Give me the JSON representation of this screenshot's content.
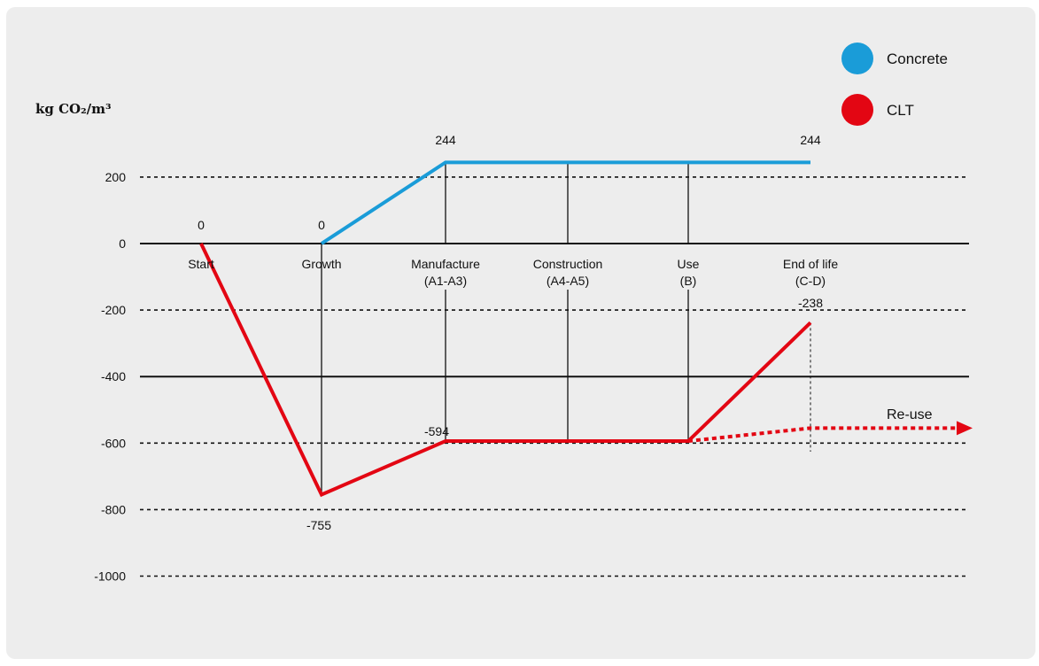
{
  "chart_data": {
    "type": "line",
    "title": "",
    "ylabel": "kg CO₂/m³",
    "xlabel": "",
    "ylim": [
      -1000,
      244
    ],
    "y_ticks": [
      "200",
      "0",
      "-200",
      "-400",
      "-600",
      "-800",
      "-1000"
    ],
    "y_tick_values": [
      200,
      0,
      -200,
      -400,
      -600,
      -800,
      -1000
    ],
    "grid": "dotted horizontal",
    "legend_placement": "top-right",
    "categories": [
      {
        "line1": "Start",
        "line2": ""
      },
      {
        "line1": "Growth",
        "line2": ""
      },
      {
        "line1": "Manufacture",
        "line2": "(A1-A3)"
      },
      {
        "line1": "Construction",
        "line2": "(A4-A5)"
      },
      {
        "line1": "Use",
        "line2": "(B)"
      },
      {
        "line1": "End of life",
        "line2": "(C-D)"
      }
    ],
    "series": [
      {
        "name": "Concrete",
        "color": "#1a9cd8",
        "points": [
          {
            "stage": 1,
            "value": 0
          },
          {
            "stage": 2,
            "value": 244
          },
          {
            "stage": 3,
            "value": 244
          },
          {
            "stage": 4,
            "value": 244
          },
          {
            "stage": 5,
            "value": 244
          }
        ],
        "data_labels": [
          {
            "stage": 1,
            "text": "0"
          },
          {
            "stage": 2,
            "text": "244"
          },
          {
            "stage": 5,
            "text": "244"
          }
        ]
      },
      {
        "name": "CLT",
        "color": "#e30613",
        "points": [
          {
            "stage": 0,
            "value": 0
          },
          {
            "stage": 1,
            "value": -755
          },
          {
            "stage": 2,
            "value": -594
          },
          {
            "stage": 3,
            "value": -594
          },
          {
            "stage": 4,
            "value": -594
          },
          {
            "stage": 5,
            "value": -238
          }
        ],
        "data_labels": [
          {
            "stage": 0,
            "text": "0"
          },
          {
            "stage": 1,
            "text": "-755"
          },
          {
            "stage": 2,
            "text": "-594"
          },
          {
            "stage": 5,
            "text": "-238"
          }
        ]
      }
    ],
    "annotations": [
      {
        "text": "Re-use",
        "series": "CLT",
        "style": "dotted arrow",
        "from_stage": 4,
        "from_value": -594,
        "to_value": -555
      }
    ]
  }
}
